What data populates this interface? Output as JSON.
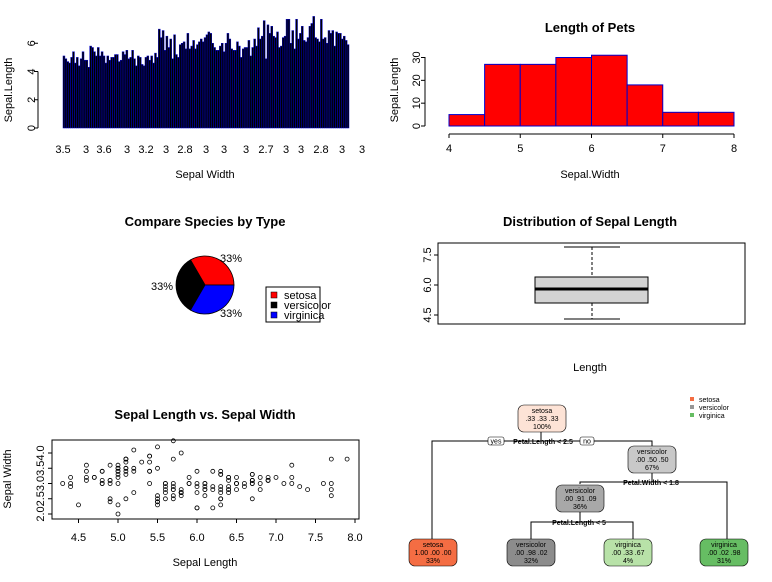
{
  "colors": {
    "bar_fill": "#000000",
    "bar_stroke": "#0000cc",
    "hist_fill": "#ff0000",
    "hist_stroke": "#0000cc",
    "pie": [
      "#ff0000",
      "#000000",
      "#0000ff"
    ],
    "box_fill": "#d3d3d3",
    "tree_setosa": "#f46d43",
    "tree_versicolor": "#969696",
    "tree_virginica": "#66bd63"
  },
  "chart_data": [
    {
      "type": "bar",
      "title": "",
      "xlabel": "Sepal Width",
      "ylabel": "Sepal.Length",
      "ylim": [
        0,
        8
      ],
      "yticks": [
        "0",
        "2",
        "4",
        "6"
      ],
      "xtick_labels": [
        "3.5",
        "3",
        "3.6",
        "3",
        "3.2",
        "3",
        "2.8",
        "3",
        "3",
        "3",
        "2.7",
        "3",
        "3",
        "2.8",
        "3",
        "3"
      ],
      "values": [
        5.1,
        4.9,
        4.7,
        4.6,
        5.0,
        5.4,
        4.6,
        5.0,
        4.4,
        4.9,
        5.4,
        4.8,
        4.8,
        4.3,
        5.8,
        5.7,
        5.4,
        5.1,
        5.7,
        5.1,
        5.4,
        5.1,
        4.6,
        5.1,
        4.8,
        5.0,
        5.0,
        5.2,
        5.2,
        4.7,
        4.8,
        5.4,
        5.2,
        5.5,
        4.9,
        5.0,
        5.5,
        4.9,
        4.4,
        5.1,
        5.0,
        4.5,
        4.4,
        5.0,
        5.1,
        4.8,
        5.1,
        4.6,
        5.3,
        5.0,
        7.0,
        6.4,
        6.9,
        5.5,
        6.5,
        5.7,
        6.3,
        4.9,
        6.6,
        5.2,
        5.0,
        5.9,
        6.0,
        6.1,
        5.6,
        6.7,
        5.6,
        5.8,
        6.2,
        5.6,
        5.9,
        6.1,
        6.3,
        6.1,
        6.4,
        6.6,
        6.8,
        6.7,
        6.0,
        5.7,
        5.5,
        5.5,
        5.8,
        6.0,
        5.4,
        6.0,
        6.7,
        6.3,
        5.6,
        5.5,
        5.5,
        6.1,
        5.8,
        5.0,
        5.6,
        5.7,
        5.7,
        6.2,
        5.1,
        5.7,
        6.3,
        5.8,
        7.1,
        6.3,
        6.5,
        7.6,
        4.9,
        7.3,
        6.7,
        7.2,
        6.5,
        6.4,
        6.8,
        5.7,
        5.8,
        6.4,
        6.5,
        7.7,
        7.7,
        6.0,
        6.9,
        5.6,
        7.7,
        6.3,
        6.7,
        7.2,
        6.2,
        6.1,
        6.4,
        7.2,
        7.4,
        7.9,
        6.4,
        6.3,
        6.1,
        7.7,
        6.3,
        6.4,
        6.0,
        6.9,
        6.7,
        6.9,
        5.8,
        6.8,
        6.7,
        6.7,
        6.3,
        6.5,
        6.2,
        5.9
      ]
    },
    {
      "type": "bar",
      "title": "Length of Pets",
      "xlabel": "Sepal.Width",
      "ylabel": "Sepal.Length",
      "xlim": [
        4,
        8
      ],
      "ylim": [
        0,
        30
      ],
      "xticks": [
        "4",
        "5",
        "6",
        "7",
        "8"
      ],
      "yticks": [
        "0",
        "10",
        "20",
        "30"
      ],
      "bins": [
        [
          4.0,
          4.5
        ],
        [
          4.5,
          5.0
        ],
        [
          5.0,
          5.5
        ],
        [
          5.5,
          6.0
        ],
        [
          6.0,
          6.5
        ],
        [
          6.5,
          7.0
        ],
        [
          7.0,
          7.5
        ],
        [
          7.5,
          8.0
        ]
      ],
      "values": [
        5,
        27,
        27,
        30,
        31,
        18,
        6,
        6
      ]
    },
    {
      "type": "pie",
      "title": "Compare Species by Type",
      "categories": [
        "setosa",
        "versicolor",
        "virginica"
      ],
      "values": [
        33,
        33,
        33
      ],
      "labels": [
        "33%",
        "33%",
        "33%"
      ],
      "legend": "right"
    },
    {
      "type": "box",
      "title": "Distribution of Sepal Length",
      "xlabel": "Length",
      "yticks": [
        "4.5",
        "6.0",
        "7.5"
      ],
      "ylim": [
        4.3,
        7.9
      ],
      "stats": {
        "min": 4.3,
        "q1": 5.1,
        "median": 5.8,
        "q3": 6.4,
        "max": 7.9
      }
    },
    {
      "type": "scatter",
      "title": "Sepal Length vs. Sepal Width",
      "xlabel": "Sepal Length",
      "ylabel": "Sepal Width",
      "xlim": [
        4.2,
        8.0
      ],
      "ylim": [
        1.9,
        4.5
      ],
      "xticks": [
        "4.5",
        "5.0",
        "5.5",
        "6.0",
        "6.5",
        "7.0",
        "7.5",
        "8.0"
      ],
      "yticks": [
        "2.0",
        "2.5",
        "3.0",
        "3.5",
        "4.0"
      ],
      "x": [
        5.1,
        4.9,
        4.7,
        4.6,
        5.0,
        5.4,
        4.6,
        5.0,
        4.4,
        4.9,
        5.4,
        4.8,
        4.8,
        4.3,
        5.8,
        5.7,
        5.4,
        5.1,
        5.7,
        5.1,
        5.4,
        5.1,
        4.6,
        5.1,
        4.8,
        5.0,
        5.0,
        5.2,
        5.2,
        4.7,
        4.8,
        5.4,
        5.2,
        5.5,
        4.9,
        5.0,
        5.5,
        4.9,
        4.4,
        5.1,
        5.0,
        4.5,
        4.4,
        5.0,
        5.1,
        4.8,
        5.1,
        4.6,
        5.3,
        5.0,
        7.0,
        6.4,
        6.9,
        5.5,
        6.5,
        5.7,
        6.3,
        4.9,
        6.6,
        5.2,
        5.0,
        5.9,
        6.0,
        6.1,
        5.6,
        6.7,
        5.6,
        5.8,
        6.2,
        5.6,
        5.9,
        6.1,
        6.3,
        6.1,
        6.4,
        6.6,
        6.8,
        6.7,
        6.0,
        5.7,
        5.5,
        5.5,
        5.8,
        6.0,
        5.4,
        6.0,
        6.7,
        6.3,
        5.6,
        5.5,
        5.5,
        6.1,
        5.8,
        5.0,
        5.6,
        5.7,
        5.7,
        6.2,
        5.1,
        5.7,
        6.3,
        5.8,
        7.1,
        6.3,
        6.5,
        7.6,
        4.9,
        7.3,
        6.7,
        7.2,
        6.5,
        6.4,
        6.8,
        5.7,
        5.8,
        6.4,
        6.5,
        7.7,
        7.7,
        6.0,
        6.9,
        5.6,
        7.7,
        6.3,
        6.7,
        7.2,
        6.2,
        6.1,
        6.4,
        7.2,
        7.4,
        7.9,
        6.4,
        6.3,
        6.1,
        7.7,
        6.3,
        6.4,
        6.0,
        6.9,
        6.7,
        6.9,
        5.8,
        6.8,
        6.7,
        6.7,
        6.3,
        6.5,
        6.2,
        5.9
      ],
      "y": [
        3.5,
        3.0,
        3.2,
        3.1,
        3.6,
        3.9,
        3.4,
        3.4,
        2.9,
        3.1,
        3.7,
        3.4,
        3.0,
        3.0,
        4.0,
        4.4,
        3.9,
        3.5,
        3.8,
        3.8,
        3.4,
        3.7,
        3.6,
        3.3,
        3.4,
        3.0,
        3.4,
        3.5,
        3.4,
        3.2,
        3.1,
        3.4,
        4.1,
        4.2,
        3.1,
        3.2,
        3.5,
        3.6,
        3.0,
        3.4,
        3.5,
        2.3,
        3.2,
        3.5,
        3.8,
        3.0,
        3.8,
        3.2,
        3.7,
        3.3,
        3.2,
        3.2,
        3.1,
        2.3,
        2.8,
        2.8,
        3.3,
        2.4,
        2.9,
        2.7,
        2.0,
        3.0,
        2.2,
        2.9,
        2.9,
        3.1,
        3.0,
        2.7,
        2.2,
        2.5,
        3.2,
        2.8,
        2.5,
        2.8,
        2.9,
        3.0,
        2.8,
        3.0,
        2.9,
        2.6,
        2.4,
        2.4,
        2.7,
        2.7,
        3.0,
        3.4,
        3.1,
        2.3,
        3.0,
        2.5,
        2.6,
        3.0,
        2.6,
        2.3,
        2.7,
        3.0,
        2.9,
        2.9,
        2.5,
        2.8,
        3.3,
        2.7,
        3.0,
        2.9,
        3.0,
        3.0,
        2.5,
        2.9,
        2.5,
        3.6,
        3.2,
        2.7,
        3.0,
        2.5,
        2.8,
        3.2,
        3.0,
        3.8,
        2.6,
        2.2,
        3.2,
        2.8,
        2.8,
        2.7,
        3.3,
        3.2,
        2.8,
        3.0,
        2.8,
        3.0,
        2.8,
        3.8,
        2.8,
        2.8,
        2.6,
        3.0,
        3.4,
        3.1,
        3.0,
        3.1,
        3.1,
        3.1,
        2.7,
        3.2,
        3.3,
        3.0,
        2.5,
        3.0,
        3.4,
        3.0
      ]
    }
  ],
  "tree": {
    "legend": [
      "setosa",
      "versicolor",
      "virginica"
    ],
    "yes_label": "yes",
    "no_label": "no",
    "splits": [
      "Petal.Length < 2.5",
      "Petal.Width < 1.8",
      "Petal.Length < 5"
    ],
    "nodes": [
      {
        "name": "setosa",
        "values": ".33 .33 .33",
        "pct": "100%",
        "fill": "#fde3d6"
      },
      {
        "name": "versicolor",
        "values": ".00 .50 .50",
        "pct": "67%",
        "fill": "#c8c8c8"
      },
      {
        "name": "versicolor",
        "values": ".00 .91 .09",
        "pct": "36%",
        "fill": "#a8a8a8"
      },
      {
        "name": "setosa",
        "values": "1.00 .00 .00",
        "pct": "33%",
        "fill": "#f46d43"
      },
      {
        "name": "versicolor",
        "values": ".00 .98 .02",
        "pct": "32%",
        "fill": "#8c8c8c"
      },
      {
        "name": "virginica",
        "values": ".00 .33 .67",
        "pct": "4%",
        "fill": "#b8e2a8"
      },
      {
        "name": "virginica",
        "values": ".00 .02 .98",
        "pct": "31%",
        "fill": "#66bd63"
      }
    ]
  }
}
